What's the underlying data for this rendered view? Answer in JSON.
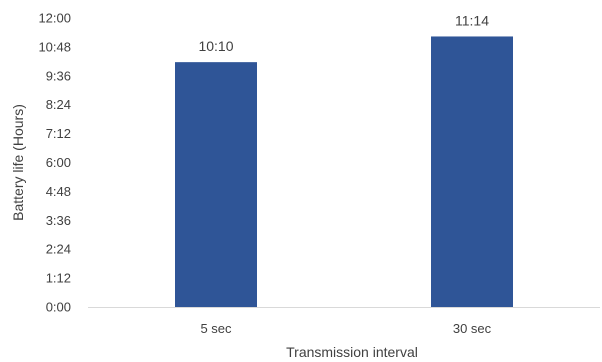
{
  "chart_data": {
    "type": "bar",
    "title": "",
    "xlabel": "Transmission interval",
    "ylabel": "Battery life (Hours)",
    "categories": [
      "5 sec",
      "30 sec"
    ],
    "values": [
      10.1667,
      11.2333
    ],
    "data_labels": [
      "10:10",
      "11:14"
    ],
    "ylim": [
      0,
      12
    ],
    "yticks": [
      0,
      1.2,
      2.4,
      3.6,
      4.8,
      6,
      7.2,
      8.4,
      9.6,
      10.8,
      12
    ],
    "ytick_labels": [
      "0:00",
      "1:12",
      "2:24",
      "3:36",
      "4:48",
      "6:00",
      "7:12",
      "8:24",
      "9:36",
      "10:48",
      "12:00"
    ],
    "bar_color": "#2F5597",
    "grid": false,
    "legend": "none"
  }
}
